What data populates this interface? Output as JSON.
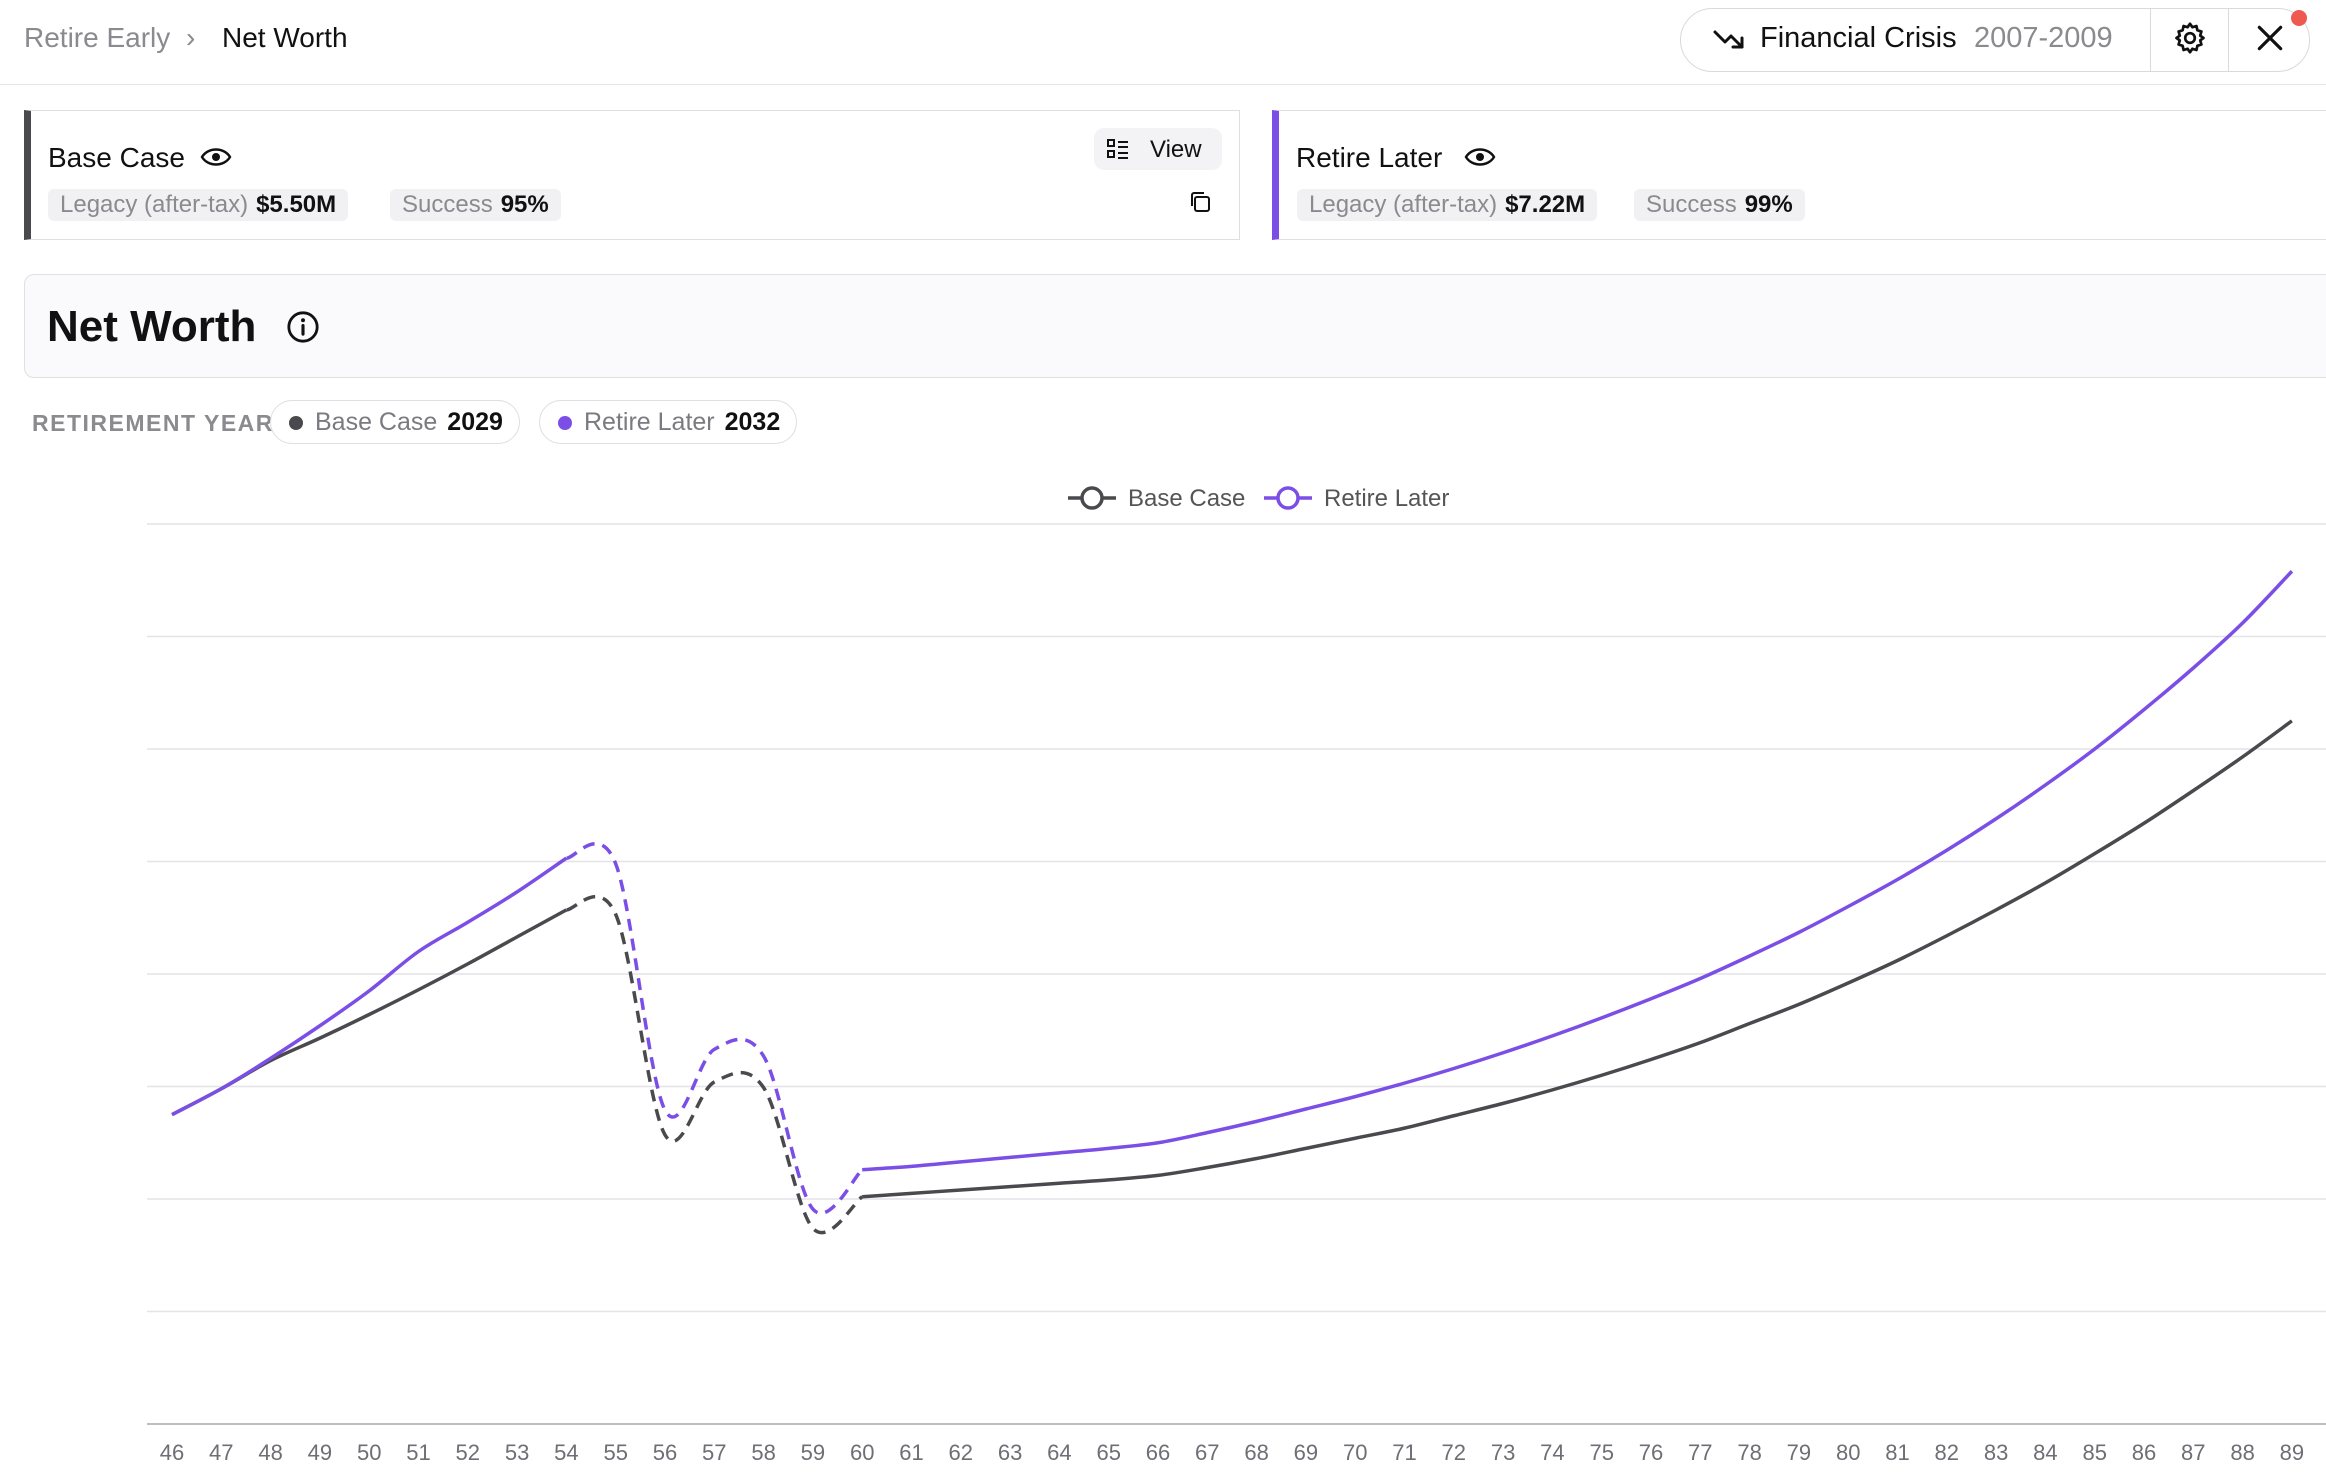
{
  "breadcrumb": {
    "root": "Retire Early",
    "separator": "›",
    "current": "Net Worth"
  },
  "scenario_selector": {
    "icon": "trend-down-icon",
    "name": "Financial Crisis",
    "years": "2007-2009"
  },
  "toolbar": {
    "settings_icon": "gear-icon",
    "close_icon": "close-icon",
    "notification_color": "#ee5a4f"
  },
  "plans": [
    {
      "name": "Base Case",
      "color": "#4a4a4e",
      "legacy_label": "Legacy (after-tax)",
      "legacy_value": "$5.50M",
      "success_label": "Success",
      "success_value": "95%",
      "view_label": "View"
    },
    {
      "name": "Retire Later",
      "color": "#7b4fe6",
      "legacy_label": "Legacy (after-tax)",
      "legacy_value": "$7.22M",
      "success_label": "Success",
      "success_value": "99%"
    }
  ],
  "section": {
    "title": "Net Worth"
  },
  "retirement_year": {
    "label": "RETIREMENT YEAR",
    "items": [
      {
        "name": "Base Case",
        "year": "2029",
        "color": "#4a4a4e"
      },
      {
        "name": "Retire Later",
        "year": "2032",
        "color": "#7b4fe6"
      }
    ]
  },
  "chart_data": {
    "type": "line",
    "title": "",
    "xlabel": "",
    "ylabel": "",
    "legend_position": "top-center",
    "grid": true,
    "x": [
      46,
      47,
      48,
      49,
      50,
      51,
      52,
      53,
      54,
      55,
      56,
      57,
      58,
      59,
      60,
      61,
      62,
      63,
      64,
      65,
      66,
      67,
      68,
      69,
      70,
      71,
      72,
      73,
      74,
      75,
      76,
      77,
      78,
      79,
      80,
      81,
      82,
      83,
      84,
      85,
      86,
      87,
      88,
      89
    ],
    "ylim": [
      0,
      8
    ],
    "crisis_span": [
      54,
      60
    ],
    "series": [
      {
        "name": "Base Case",
        "color": "#4a4a4e",
        "values": [
          2.75,
          2.98,
          3.23,
          3.43,
          3.64,
          3.86,
          4.09,
          4.33,
          4.57,
          4.53,
          2.57,
          3.04,
          2.99,
          1.74,
          2.02,
          2.05,
          2.08,
          2.11,
          2.14,
          2.17,
          2.21,
          2.28,
          2.36,
          2.45,
          2.54,
          2.63,
          2.74,
          2.85,
          2.97,
          3.1,
          3.24,
          3.39,
          3.56,
          3.73,
          3.92,
          4.12,
          4.34,
          4.57,
          4.81,
          5.07,
          5.34,
          5.63,
          5.93,
          6.25
        ]
      },
      {
        "name": "Retire Later",
        "color": "#7b4fe6",
        "values": [
          2.75,
          2.98,
          3.25,
          3.54,
          3.85,
          4.2,
          4.46,
          4.73,
          5.03,
          4.98,
          2.79,
          3.33,
          3.27,
          1.91,
          2.26,
          2.29,
          2.33,
          2.37,
          2.41,
          2.45,
          2.5,
          2.59,
          2.69,
          2.8,
          2.91,
          3.03,
          3.16,
          3.3,
          3.45,
          3.61,
          3.78,
          3.96,
          4.16,
          4.37,
          4.6,
          4.84,
          5.1,
          5.38,
          5.68,
          6.0,
          6.35,
          6.72,
          7.12,
          7.58
        ]
      }
    ]
  }
}
